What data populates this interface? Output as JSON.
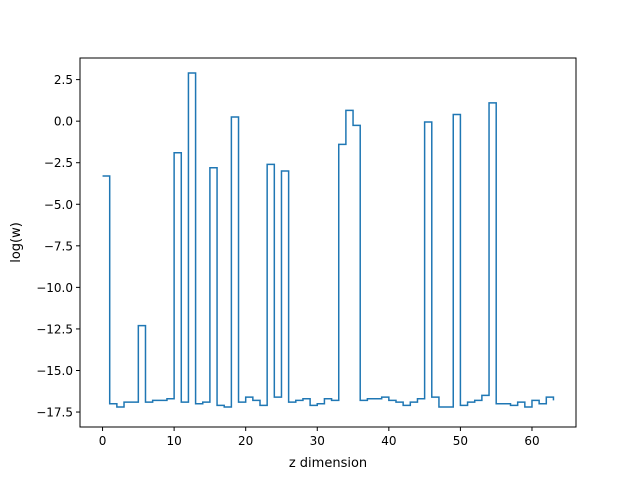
{
  "chart_data": {
    "type": "line",
    "drawstyle": "steps-post",
    "xlabel": "z dimension",
    "ylabel": "log(w)",
    "xlim": [
      -3.15,
      66.15
    ],
    "ylim": [
      -18.4,
      3.8
    ],
    "x_ticks": [
      0,
      10,
      20,
      30,
      40,
      50,
      60
    ],
    "x_tick_labels": [
      "0",
      "10",
      "20",
      "30",
      "40",
      "50",
      "60"
    ],
    "y_ticks": [
      -17.5,
      -15.0,
      -12.5,
      -10.0,
      -7.5,
      -5.0,
      -2.5,
      0.0,
      2.5
    ],
    "y_tick_labels": [
      "−17.5",
      "−15.0",
      "−12.5",
      "−10.0",
      "−7.5",
      "−5.0",
      "−2.5",
      "0.0",
      "2.5"
    ],
    "grid": false,
    "line_color": "#1f77b4",
    "series": [
      {
        "x": [
          0,
          1,
          2,
          3,
          4,
          5,
          6,
          7,
          8,
          9,
          10,
          11,
          12,
          13,
          14,
          15,
          16,
          17,
          18,
          19,
          20,
          21,
          22,
          23,
          24,
          25,
          26,
          27,
          28,
          29,
          30,
          31,
          32,
          33,
          34,
          35,
          36,
          37,
          38,
          39,
          40,
          41,
          42,
          43,
          44,
          45,
          46,
          47,
          48,
          49,
          50,
          51,
          52,
          53,
          54,
          55,
          56,
          57,
          58,
          59,
          60,
          61,
          62,
          63
        ],
        "values": [
          -3.3,
          -17.0,
          -17.2,
          -16.9,
          -16.9,
          -12.3,
          -16.9,
          -16.8,
          -16.8,
          -16.7,
          -1.9,
          -16.9,
          2.9,
          -17.0,
          -16.9,
          -2.8,
          -17.1,
          -17.2,
          0.25,
          -16.9,
          -16.6,
          -16.8,
          -17.1,
          -2.6,
          -16.6,
          -3.0,
          -16.9,
          -16.8,
          -16.7,
          -17.1,
          -17.0,
          -16.7,
          -16.8,
          -1.4,
          0.65,
          -0.25,
          -16.8,
          -16.7,
          -16.7,
          -16.6,
          -16.8,
          -16.9,
          -17.1,
          -16.9,
          -16.7,
          -0.05,
          -16.6,
          -17.2,
          -17.2,
          0.4,
          -17.1,
          -16.9,
          -16.8,
          -16.5,
          1.1,
          -17.0,
          -17.0,
          -17.1,
          -16.9,
          -17.2,
          -16.8,
          -17.0,
          -16.6,
          -16.8
        ]
      }
    ]
  }
}
